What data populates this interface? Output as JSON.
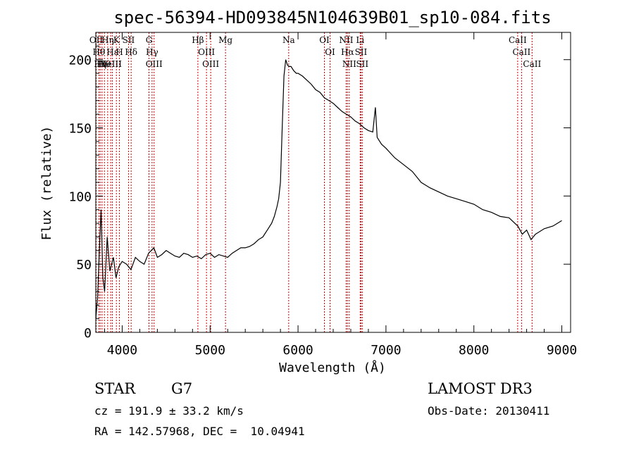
{
  "chart_data": {
    "type": "line",
    "title": "spec-56394-HD093845N104639B01_sp10-084.fits",
    "xlabel": "Wavelength (Å)",
    "ylabel": "Flux (relative)",
    "xlim": [
      3700,
      9100
    ],
    "ylim": [
      0,
      220
    ],
    "xticks": [
      4000,
      5000,
      6000,
      7000,
      8000,
      9000
    ],
    "yticks": [
      0,
      50,
      100,
      150,
      200
    ],
    "line_color": "#000000",
    "marker_color": "#cc0000",
    "series": [
      {
        "x": [
          3700,
          3720,
          3740,
          3760,
          3780,
          3800,
          3830,
          3860,
          3900,
          3930,
          3960,
          4000,
          4050,
          4100,
          4150,
          4200,
          4250,
          4300,
          4330,
          4360,
          4400,
          4450,
          4500,
          4550,
          4600,
          4650,
          4700,
          4750,
          4800,
          4850,
          4900,
          4950,
          5000,
          5050,
          5100,
          5150,
          5200,
          5250,
          5300,
          5350,
          5400,
          5450,
          5500,
          5550,
          5600,
          5650,
          5700,
          5730,
          5760,
          5780,
          5800,
          5820,
          5840,
          5860,
          5880,
          5900,
          5920,
          5950,
          5980,
          6000,
          6050,
          6100,
          6150,
          6200,
          6250,
          6300,
          6350,
          6400,
          6450,
          6500,
          6550,
          6600,
          6650,
          6700,
          6750,
          6800,
          6850,
          6880,
          6900,
          6950,
          7000,
          7100,
          7200,
          7300,
          7400,
          7500,
          7600,
          7700,
          7800,
          7900,
          8000,
          8100,
          8200,
          8300,
          8400,
          8500,
          8550,
          8600,
          8650,
          8700,
          8800,
          8900,
          8950,
          9000
        ],
        "y": [
          10,
          25,
          60,
          90,
          40,
          30,
          70,
          45,
          55,
          40,
          48,
          52,
          50,
          46,
          55,
          52,
          50,
          58,
          60,
          62,
          55,
          57,
          60,
          58,
          56,
          55,
          58,
          57,
          55,
          56,
          54,
          57,
          58,
          55,
          57,
          56,
          55,
          58,
          60,
          62,
          62,
          63,
          65,
          68,
          70,
          75,
          80,
          85,
          92,
          98,
          110,
          150,
          188,
          200,
          196,
          195,
          195,
          192,
          190,
          190,
          188,
          185,
          182,
          178,
          176,
          172,
          170,
          168,
          165,
          162,
          160,
          158,
          155,
          153,
          150,
          148,
          147,
          165,
          143,
          138,
          135,
          128,
          123,
          118,
          110,
          106,
          103,
          100,
          98,
          96,
          94,
          90,
          88,
          85,
          84,
          78,
          72,
          75,
          68,
          72,
          76,
          78,
          80,
          82
        ]
      }
    ],
    "lines": [
      {
        "x": 3704,
        "label": "OII"
      },
      {
        "x": 3735,
        "label": "Hθ"
      },
      {
        "x": 3750,
        "label": "Hη"
      },
      {
        "x": 3771,
        "label": "Hι"
      },
      {
        "x": 3798,
        "label": "Hθ"
      },
      {
        "x": 3835,
        "label": "Hη"
      },
      {
        "x": 3869,
        "label": "NeIII"
      },
      {
        "x": 3889,
        "label": "Hε"
      },
      {
        "x": 3934,
        "label": "K"
      },
      {
        "x": 3969,
        "label": "H"
      },
      {
        "x": 4072,
        "label": "SII"
      },
      {
        "x": 4102,
        "label": "Hδ"
      },
      {
        "x": 4305,
        "label": "G"
      },
      {
        "x": 4340,
        "label": "Hγ"
      },
      {
        "x": 4363,
        "label": "OIII"
      },
      {
        "x": 4861,
        "label": "Hβ"
      },
      {
        "x": 4959,
        "label": "OIII"
      },
      {
        "x": 5007,
        "label": "OIII"
      },
      {
        "x": 5175,
        "label": "Mg"
      },
      {
        "x": 5894,
        "label": "Na"
      },
      {
        "x": 6300,
        "label": "OI"
      },
      {
        "x": 6364,
        "label": "OI"
      },
      {
        "x": 6548,
        "label": "NII"
      },
      {
        "x": 6563,
        "label": "Hα"
      },
      {
        "x": 6583,
        "label": "NII"
      },
      {
        "x": 6707,
        "label": "Li"
      },
      {
        "x": 6716,
        "label": "SII"
      },
      {
        "x": 6731,
        "label": "SII"
      },
      {
        "x": 8498,
        "label": "CaII"
      },
      {
        "x": 8542,
        "label": "CaII"
      },
      {
        "x": 8662,
        "label": "CaII"
      }
    ]
  },
  "info": {
    "object_type": "STAR",
    "subclass": "G7",
    "survey": "LAMOST DR3",
    "cz": "cz = 191.9 ± 33.2 km/s",
    "obs_date": "Obs-Date: 20130411",
    "coords": "RA = 142.57968, DEC =  10.04941"
  }
}
